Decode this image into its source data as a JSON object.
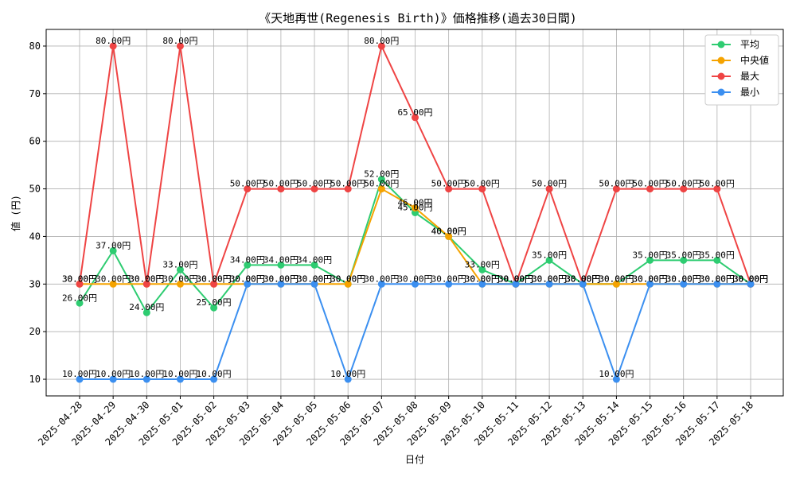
{
  "chart_data": {
    "type": "line",
    "title": "《天地再世(Regenesis Birth)》価格推移(過去30日間)",
    "xlabel": "日付",
    "ylabel": "値 (円)",
    "ylim": [
      6.5,
      83.5
    ],
    "yticks": [
      10,
      20,
      30,
      40,
      50,
      60,
      70,
      80
    ],
    "grid": true,
    "legend_position": "top-right",
    "value_suffix": "円",
    "categories": [
      "2025-04-28",
      "2025-04-29",
      "2025-04-30",
      "2025-05-01",
      "2025-05-02",
      "2025-05-03",
      "2025-05-04",
      "2025-05-05",
      "2025-05-06",
      "2025-05-07",
      "2025-05-08",
      "2025-05-09",
      "2025-05-10",
      "2025-05-11",
      "2025-05-12",
      "2025-05-13",
      "2025-05-14",
      "2025-05-15",
      "2025-05-16",
      "2025-05-17",
      "2025-05-18"
    ],
    "series": [
      {
        "name": "平均",
        "color": "#2ecc71",
        "values": [
          26,
          37,
          24,
          33,
          25,
          34,
          34,
          34,
          30,
          52,
          45,
          40,
          33,
          30,
          35,
          30,
          30,
          35,
          35,
          35,
          30
        ]
      },
      {
        "name": "中央値",
        "color": "#f5a300",
        "values": [
          30,
          30,
          30,
          30,
          30,
          30,
          30,
          30,
          30,
          50,
          46,
          40,
          30,
          30,
          30,
          30,
          30,
          30,
          30,
          30,
          30
        ]
      },
      {
        "name": "最大",
        "color": "#ef4444",
        "values": [
          30,
          80,
          30,
          80,
          30,
          50,
          50,
          50,
          50,
          80,
          65,
          50,
          50,
          30,
          50,
          30,
          50,
          50,
          50,
          50,
          30
        ]
      },
      {
        "name": "最小",
        "color": "#3b8ff0",
        "values": [
          10,
          10,
          10,
          10,
          10,
          30,
          30,
          30,
          10,
          30,
          30,
          30,
          30,
          30,
          30,
          30,
          10,
          30,
          30,
          30,
          30
        ]
      }
    ]
  }
}
